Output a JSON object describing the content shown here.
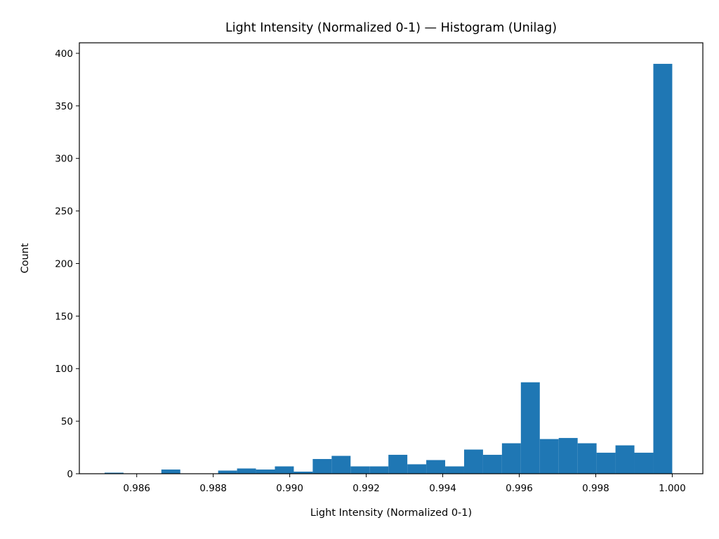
{
  "chart_data": {
    "type": "bar",
    "title": "Light Intensity (Normalized 0-1) — Histogram (Unilag)",
    "xlabel": "Light Intensity (Normalized 0-1)",
    "ylabel": "Count",
    "xlim": [
      0.9845,
      1.0008
    ],
    "ylim": [
      0,
      410
    ],
    "x_ticks": [
      0.986,
      0.988,
      0.99,
      0.992,
      0.994,
      0.996,
      0.998,
      1.0
    ],
    "x_tick_labels": [
      "0.986",
      "0.988",
      "0.990",
      "0.992",
      "0.994",
      "0.996",
      "0.998",
      "1.000"
    ],
    "y_ticks": [
      0,
      50,
      100,
      150,
      200,
      250,
      300,
      350,
      400
    ],
    "y_tick_labels": [
      "0",
      "50",
      "100",
      "150",
      "200",
      "250",
      "300",
      "350",
      "400"
    ],
    "bins": {
      "start": 0.98516,
      "end": 1.0,
      "count": 30
    },
    "values": [
      1,
      0,
      0,
      4,
      0,
      0,
      3,
      5,
      4,
      7,
      2,
      14,
      17,
      7,
      7,
      18,
      9,
      13,
      7,
      23,
      18,
      29,
      87,
      33,
      34,
      29,
      20,
      27,
      20,
      390
    ],
    "bar_color": "#1f77b4",
    "grid": false,
    "legend": "none"
  }
}
